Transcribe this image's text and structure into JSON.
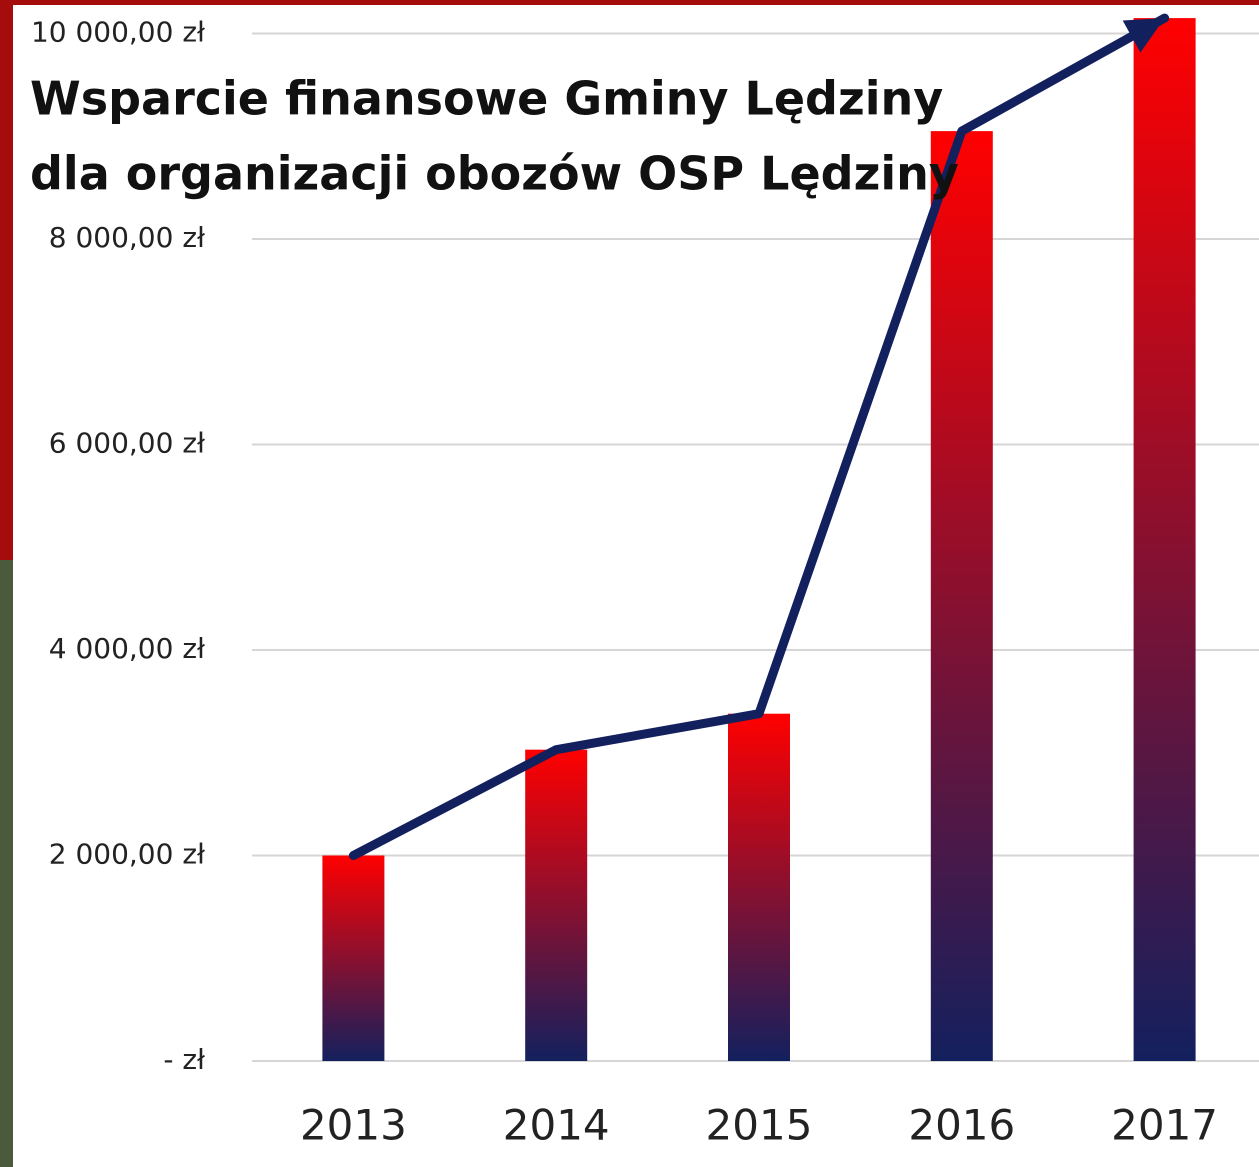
{
  "chart_data": {
    "type": "bar",
    "title": [
      "Wsparcie finansowe Gminy Lędziny",
      "dla organizacji obozów OSP Lędziny"
    ],
    "categories": [
      "2013",
      "2014",
      "2015",
      "2016",
      "2017"
    ],
    "values": [
      2000,
      3030,
      3380,
      9050,
      10150
    ],
    "gradient": [
      "#ff0000",
      "#13205e"
    ],
    "line_color": "#13205e",
    "ylim": [
      0,
      10200
    ],
    "yticks": [
      {
        "value": 0,
        "label": "-   zł"
      },
      {
        "value": 2000,
        "label": "2 000,00 zł"
      },
      {
        "value": 4000,
        "label": "4 000,00 zł"
      },
      {
        "value": 6000,
        "label": "6 000,00 zł"
      },
      {
        "value": 8000,
        "label": "8 000,00 zł"
      },
      {
        "value": 10000,
        "label": "10 000,00 zł"
      }
    ],
    "grid": true
  }
}
